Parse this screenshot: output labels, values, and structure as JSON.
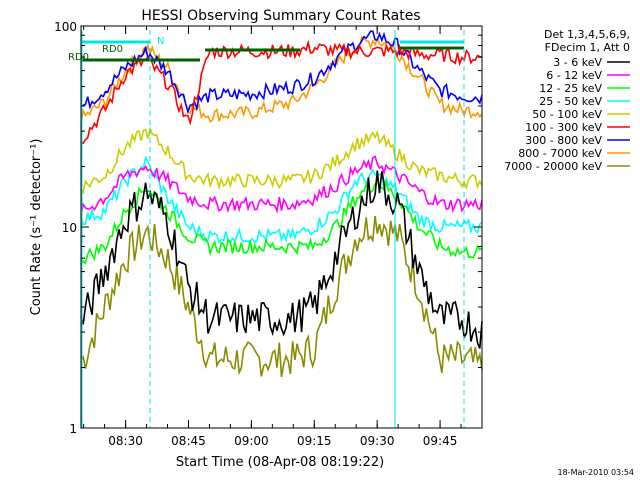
{
  "chart_data": {
    "type": "line",
    "title": "HESSI Observing Summary Count Rates",
    "xlabel": "Start Time (08-Apr-08 08:19:22)",
    "ylabel": "Count Rate (s⁻¹ detector⁻¹)",
    "yscale": "log",
    "ylim": [
      1,
      100
    ],
    "xlim": [
      "08:19:22",
      "09:55:00"
    ],
    "x_ticks": [
      "08:30",
      "08:45",
      "09:00",
      "09:15",
      "09:30",
      "09:45"
    ],
    "y_tick_labels": [
      "100",
      "10",
      "1"
    ],
    "grid": false,
    "legend_position": "right",
    "legend_header": [
      "Det 1,3,4,5,6,9,",
      "FDecim 1, Att 0"
    ],
    "timestamp": "18-Mar-2010 03:54",
    "annotations": [
      {
        "text": "RD0",
        "time": "08:24",
        "color": "#005f00"
      },
      {
        "text": "RD0",
        "time": "08:19:30",
        "color": "#005f00"
      },
      {
        "text": "N",
        "time": "08:38",
        "color": "#00e5e5"
      }
    ],
    "series": [
      {
        "name": "3 - 6 keV",
        "color": "#000000",
        "x": [
          "08:20",
          "08:25",
          "08:30",
          "08:35",
          "08:40",
          "08:45",
          "08:50",
          "09:00",
          "09:10",
          "09:15",
          "09:20",
          "09:25",
          "09:30",
          "09:35",
          "09:40",
          "09:45",
          "09:50",
          "09:55"
        ],
        "y": [
          3.5,
          6,
          11,
          15,
          11,
          5,
          3.5,
          3.5,
          3.5,
          4,
          7,
          12,
          17,
          13,
          6,
          3.5,
          3.5,
          3
        ]
      },
      {
        "name": "6 - 12 keV",
        "color": "#ff00ff",
        "x": [
          "08:20",
          "08:25",
          "08:30",
          "08:35",
          "08:40",
          "08:45",
          "08:50",
          "09:00",
          "09:10",
          "09:15",
          "09:20",
          "09:25",
          "09:30",
          "09:35",
          "09:40",
          "09:45",
          "09:50",
          "09:55"
        ],
        "y": [
          12,
          14,
          18,
          20,
          17,
          14,
          13,
          13,
          13,
          14,
          16,
          19,
          21,
          18,
          15,
          13,
          13,
          13
        ]
      },
      {
        "name": "12 - 25 keV",
        "color": "#00ff00",
        "x": [
          "08:20",
          "08:25",
          "08:30",
          "08:35",
          "08:40",
          "08:45",
          "08:50",
          "09:00",
          "09:10",
          "09:15",
          "09:20",
          "09:25",
          "09:30",
          "09:35",
          "09:40",
          "09:45",
          "09:50",
          "09:55"
        ],
        "y": [
          7,
          8,
          12,
          16,
          12,
          9,
          8,
          8,
          8,
          8,
          10,
          14,
          17,
          14,
          10,
          8,
          7.5,
          7.5
        ]
      },
      {
        "name": "25 - 50 keV",
        "color": "#00ffff",
        "x": [
          "08:20",
          "08:25",
          "08:30",
          "08:35",
          "08:40",
          "08:45",
          "08:50",
          "09:00",
          "09:10",
          "09:15",
          "09:20",
          "09:25",
          "09:30",
          "09:35",
          "09:40",
          "09:45",
          "09:50",
          "09:55"
        ],
        "y": [
          11,
          12,
          17,
          21,
          14,
          10,
          9,
          9,
          9,
          10,
          12,
          17,
          18,
          15,
          11,
          10,
          10,
          10
        ]
      },
      {
        "name": "50 - 100 keV",
        "color": "#cccc00",
        "x": [
          "08:20",
          "08:25",
          "08:30",
          "08:35",
          "08:40",
          "08:45",
          "08:50",
          "09:00",
          "09:10",
          "09:15",
          "09:20",
          "09:25",
          "09:30",
          "09:35",
          "09:40",
          "09:45",
          "09:50",
          "09:55"
        ],
        "y": [
          16,
          18,
          25,
          30,
          24,
          18,
          17,
          17,
          17,
          18,
          21,
          26,
          28,
          23,
          19,
          18,
          17,
          17
        ]
      },
      {
        "name": "100 - 300 keV",
        "color": "#ff0000",
        "x": [
          "08:20",
          "08:25",
          "08:30",
          "08:35",
          "08:40",
          "08:45",
          "08:50",
          "09:00",
          "09:10",
          "09:15",
          "09:20",
          "09:25",
          "09:30",
          "09:35",
          "09:40",
          "09:45",
          "09:50",
          "09:55"
        ],
        "y": [
          28,
          38,
          58,
          68,
          52,
          33,
          75,
          75,
          75,
          78,
          75,
          75,
          75,
          75,
          72,
          72,
          70,
          70
        ]
      },
      {
        "name": "300 - 800 keV",
        "color": "#0000ff",
        "x": [
          "08:20",
          "08:25",
          "08:30",
          "08:35",
          "08:40",
          "08:45",
          "08:50",
          "09:00",
          "09:10",
          "09:15",
          "09:20",
          "09:25",
          "09:30",
          "09:35",
          "09:40",
          "09:45",
          "09:50",
          "09:55"
        ],
        "y": [
          40,
          48,
          62,
          75,
          60,
          40,
          45,
          46,
          50,
          55,
          68,
          82,
          90,
          80,
          60,
          48,
          45,
          44
        ]
      },
      {
        "name": "800 - 7000 keV",
        "color": "#ff9900",
        "x": [
          "08:20",
          "08:25",
          "08:30",
          "08:35",
          "08:40",
          "08:45",
          "08:50",
          "09:00",
          "09:10",
          "09:15",
          "09:20",
          "09:25",
          "09:30",
          "09:35",
          "09:40",
          "09:45",
          "09:50",
          "09:55"
        ],
        "y": [
          35,
          42,
          60,
          78,
          62,
          40,
          36,
          37,
          42,
          50,
          64,
          80,
          86,
          74,
          55,
          41,
          38,
          38
        ]
      },
      {
        "name": "7000 - 20000 keV",
        "color": "#8b8b00",
        "x": [
          "08:20",
          "08:25",
          "08:30",
          "08:35",
          "08:40",
          "08:45",
          "08:50",
          "09:00",
          "09:10",
          "09:15",
          "09:20",
          "09:25",
          "09:30",
          "09:35",
          "09:40",
          "09:45",
          "09:50",
          "09:55"
        ],
        "y": [
          2.2,
          4,
          7,
          9.5,
          7,
          4,
          2.2,
          2.2,
          2.2,
          2.5,
          5,
          9,
          11,
          9,
          5,
          2.2,
          2.2,
          2
        ]
      }
    ]
  }
}
